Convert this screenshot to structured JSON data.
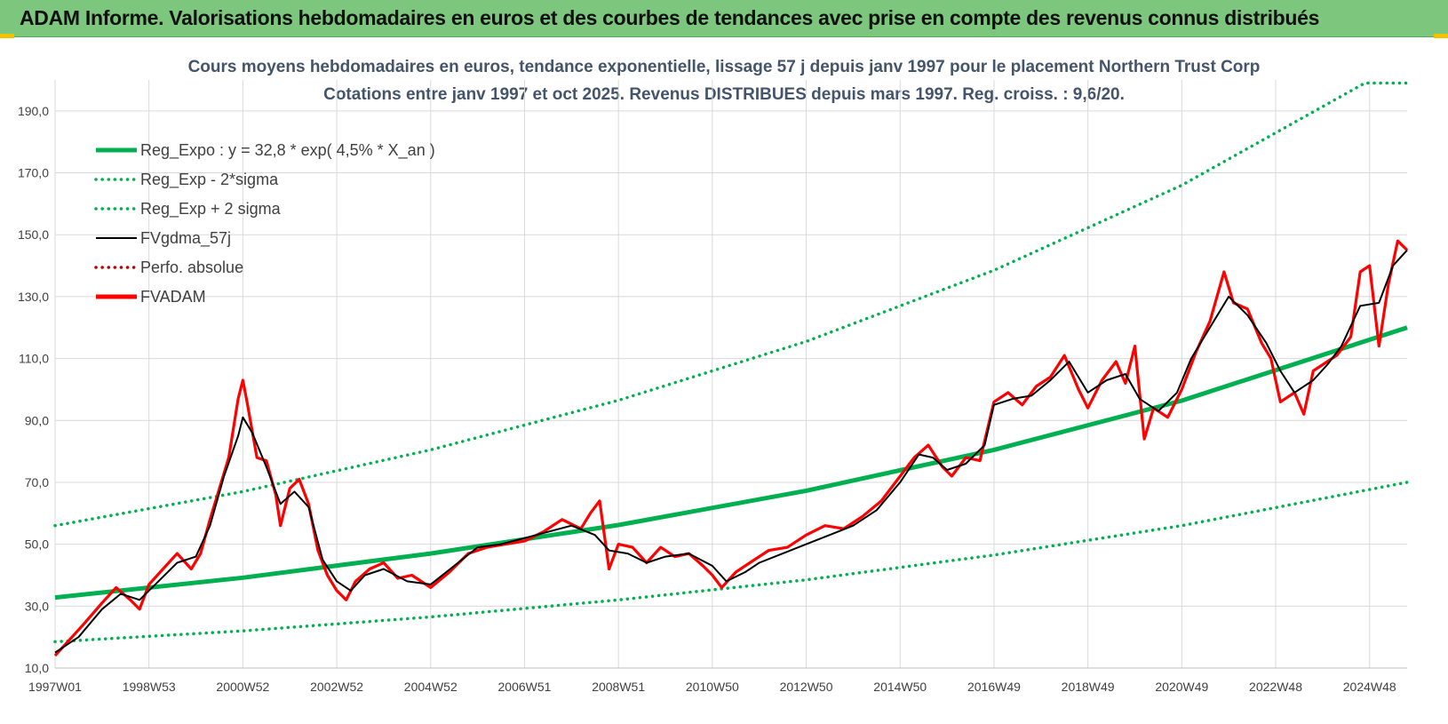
{
  "banner": {
    "title": "ADAM Informe. Valorisations hebdomadaires en euros et des courbes de tendances avec prise en compte des revenus connus distribués"
  },
  "colors": {
    "banner_bg": "#7dc67d",
    "green": "#00b050",
    "red": "#ff0000",
    "black": "#000000",
    "darkred": "#c00000",
    "title": "#44546a",
    "grid": "#d9d9d9"
  },
  "chart_data": {
    "type": "line",
    "title": "Cours moyens hebdomadaires en euros, tendance exponentielle, lissage 57 j depuis janv 1997 pour le placement Northern Trust Corp",
    "subtitle": "Cotations entre janv 1997 et oct 2025. Revenus DISTRIBUES depuis mars 1997.  Reg. croiss. : 9,6/20.",
    "xlabel": "",
    "ylabel": "",
    "ylim": [
      10,
      200
    ],
    "xlim": [
      1997.0,
      2025.8
    ],
    "yticks": [
      "10,0",
      "30,0",
      "50,0",
      "70,0",
      "90,0",
      "110,0",
      "130,0",
      "150,0",
      "170,0",
      "190,0"
    ],
    "ytick_values": [
      10,
      30,
      50,
      70,
      90,
      110,
      130,
      150,
      170,
      190
    ],
    "xticks": [
      "1997W01",
      "1998W53",
      "2000W52",
      "2002W52",
      "2004W52",
      "2006W51",
      "2008W51",
      "2010W50",
      "2012W50",
      "2014W50",
      "2016W49",
      "2018W49",
      "2020W49",
      "2022W48",
      "2024W48"
    ],
    "xtick_values": [
      1997.0,
      1999.0,
      2001.0,
      2003.0,
      2005.0,
      2007.0,
      2009.0,
      2011.0,
      2013.0,
      2015.0,
      2017.0,
      2019.0,
      2021.0,
      2023.0,
      2025.0
    ],
    "grid": true,
    "legend_position": "top-left",
    "series": [
      {
        "name": "Reg_Expo : y = 32,8 * exp( 4,5% *  X_an )",
        "style": "solid-thick",
        "color": "#00b050",
        "points": [
          [
            1997.0,
            32.8
          ],
          [
            2001.0,
            39.2
          ],
          [
            2005.0,
            47.0
          ],
          [
            2009.0,
            56.2
          ],
          [
            2013.0,
            67.3
          ],
          [
            2017.0,
            80.5
          ],
          [
            2021.0,
            96.4
          ],
          [
            2025.8,
            120.0
          ]
        ]
      },
      {
        "name": "Reg_Exp - 2*sigma",
        "style": "dotted",
        "color": "#00b050",
        "points": [
          [
            1997.0,
            18.5
          ],
          [
            2001.0,
            22.0
          ],
          [
            2005.0,
            26.5
          ],
          [
            2009.0,
            32.0
          ],
          [
            2013.0,
            38.5
          ],
          [
            2017.0,
            46.5
          ],
          [
            2021.0,
            56.0
          ],
          [
            2025.8,
            70.0
          ]
        ]
      },
      {
        "name": "Reg_Exp + 2 sigma",
        "style": "dotted",
        "color": "#00b050",
        "points": [
          [
            1997.0,
            56.0
          ],
          [
            2001.0,
            67.0
          ],
          [
            2005.0,
            80.5
          ],
          [
            2009.0,
            96.5
          ],
          [
            2013.0,
            115.5
          ],
          [
            2017.0,
            138.5
          ],
          [
            2021.0,
            166.0
          ],
          [
            2024.9,
            199.0
          ],
          [
            2025.8,
            199.0
          ]
        ]
      },
      {
        "name": "FVgdma_57j",
        "style": "solid",
        "color": "#000000",
        "points": [
          [
            1997.0,
            15
          ],
          [
            1997.5,
            20
          ],
          [
            1998.0,
            29
          ],
          [
            1998.4,
            34
          ],
          [
            1998.8,
            32
          ],
          [
            1999.2,
            38
          ],
          [
            1999.6,
            44
          ],
          [
            2000.0,
            46
          ],
          [
            2000.3,
            56
          ],
          [
            2000.6,
            72
          ],
          [
            2000.9,
            85
          ],
          [
            2001.0,
            91
          ],
          [
            2001.2,
            86
          ],
          [
            2001.5,
            75
          ],
          [
            2001.8,
            63
          ],
          [
            2002.1,
            67
          ],
          [
            2002.4,
            62
          ],
          [
            2002.7,
            45
          ],
          [
            2003.0,
            38
          ],
          [
            2003.3,
            35
          ],
          [
            2003.6,
            40
          ],
          [
            2004.0,
            42
          ],
          [
            2004.5,
            38
          ],
          [
            2005.0,
            37
          ],
          [
            2005.5,
            43
          ],
          [
            2006.0,
            49
          ],
          [
            2006.5,
            50
          ],
          [
            2007.0,
            52
          ],
          [
            2007.5,
            54
          ],
          [
            2008.0,
            56
          ],
          [
            2008.5,
            53
          ],
          [
            2008.8,
            48
          ],
          [
            2009.2,
            47
          ],
          [
            2009.6,
            44
          ],
          [
            2010.0,
            46
          ],
          [
            2010.5,
            47
          ],
          [
            2011.0,
            43
          ],
          [
            2011.3,
            38
          ],
          [
            2011.7,
            41
          ],
          [
            2012.0,
            44
          ],
          [
            2012.5,
            47
          ],
          [
            2013.0,
            50
          ],
          [
            2013.5,
            53
          ],
          [
            2014.0,
            56
          ],
          [
            2014.5,
            61
          ],
          [
            2015.0,
            70
          ],
          [
            2015.4,
            79
          ],
          [
            2015.7,
            78
          ],
          [
            2016.0,
            74
          ],
          [
            2016.4,
            76
          ],
          [
            2016.8,
            82
          ],
          [
            2017.0,
            95
          ],
          [
            2017.4,
            97
          ],
          [
            2017.8,
            98
          ],
          [
            2018.2,
            103
          ],
          [
            2018.6,
            109
          ],
          [
            2019.0,
            99
          ],
          [
            2019.4,
            103
          ],
          [
            2019.8,
            105
          ],
          [
            2020.1,
            97
          ],
          [
            2020.5,
            93
          ],
          [
            2020.9,
            99
          ],
          [
            2021.2,
            110
          ],
          [
            2021.6,
            120
          ],
          [
            2022.0,
            130
          ],
          [
            2022.4,
            124
          ],
          [
            2022.8,
            115
          ],
          [
            2023.1,
            106
          ],
          [
            2023.4,
            99
          ],
          [
            2023.8,
            103
          ],
          [
            2024.1,
            108
          ],
          [
            2024.4,
            114
          ],
          [
            2024.8,
            127
          ],
          [
            2025.2,
            128
          ],
          [
            2025.5,
            140
          ],
          [
            2025.8,
            145
          ]
        ]
      },
      {
        "name": "Perfo. absolue",
        "style": "dotted",
        "color": "#c00000",
        "points": []
      },
      {
        "name": "FVADAM",
        "style": "solid-thick",
        "color": "#ff0000",
        "points": [
          [
            1997.0,
            14
          ],
          [
            1997.3,
            19
          ],
          [
            1997.6,
            24
          ],
          [
            1998.0,
            31
          ],
          [
            1998.3,
            36
          ],
          [
            1998.6,
            32
          ],
          [
            1998.8,
            29
          ],
          [
            1999.0,
            37
          ],
          [
            1999.3,
            42
          ],
          [
            1999.6,
            47
          ],
          [
            1999.9,
            42
          ],
          [
            2000.1,
            47
          ],
          [
            2000.3,
            58
          ],
          [
            2000.5,
            68
          ],
          [
            2000.7,
            78
          ],
          [
            2000.9,
            97
          ],
          [
            2001.0,
            103
          ],
          [
            2001.1,
            95
          ],
          [
            2001.3,
            78
          ],
          [
            2001.5,
            77
          ],
          [
            2001.7,
            66
          ],
          [
            2001.8,
            56
          ],
          [
            2002.0,
            68
          ],
          [
            2002.2,
            71
          ],
          [
            2002.4,
            63
          ],
          [
            2002.6,
            48
          ],
          [
            2002.8,
            40
          ],
          [
            2003.0,
            35
          ],
          [
            2003.2,
            32
          ],
          [
            2003.4,
            38
          ],
          [
            2003.7,
            42
          ],
          [
            2004.0,
            44
          ],
          [
            2004.3,
            39
          ],
          [
            2004.6,
            40
          ],
          [
            2005.0,
            36
          ],
          [
            2005.4,
            41
          ],
          [
            2005.8,
            47
          ],
          [
            2006.2,
            49
          ],
          [
            2006.6,
            50
          ],
          [
            2007.0,
            51
          ],
          [
            2007.4,
            54
          ],
          [
            2007.8,
            58
          ],
          [
            2008.2,
            55
          ],
          [
            2008.4,
            60
          ],
          [
            2008.6,
            64
          ],
          [
            2008.8,
            42
          ],
          [
            2009.0,
            50
          ],
          [
            2009.3,
            49
          ],
          [
            2009.6,
            44
          ],
          [
            2009.9,
            49
          ],
          [
            2010.2,
            46
          ],
          [
            2010.5,
            47
          ],
          [
            2010.8,
            43
          ],
          [
            2011.0,
            40
          ],
          [
            2011.2,
            36
          ],
          [
            2011.5,
            41
          ],
          [
            2011.8,
            44
          ],
          [
            2012.2,
            48
          ],
          [
            2012.6,
            49
          ],
          [
            2013.0,
            53
          ],
          [
            2013.4,
            56
          ],
          [
            2013.8,
            55
          ],
          [
            2014.2,
            59
          ],
          [
            2014.6,
            64
          ],
          [
            2015.0,
            72
          ],
          [
            2015.3,
            78
          ],
          [
            2015.6,
            82
          ],
          [
            2015.9,
            75
          ],
          [
            2016.1,
            72
          ],
          [
            2016.4,
            78
          ],
          [
            2016.7,
            77
          ],
          [
            2017.0,
            96
          ],
          [
            2017.3,
            99
          ],
          [
            2017.6,
            95
          ],
          [
            2017.9,
            101
          ],
          [
            2018.2,
            104
          ],
          [
            2018.5,
            111
          ],
          [
            2018.8,
            100
          ],
          [
            2019.0,
            94
          ],
          [
            2019.3,
            103
          ],
          [
            2019.6,
            109
          ],
          [
            2019.8,
            102
          ],
          [
            2020.0,
            114
          ],
          [
            2020.2,
            84
          ],
          [
            2020.4,
            94
          ],
          [
            2020.7,
            91
          ],
          [
            2021.0,
            100
          ],
          [
            2021.3,
            112
          ],
          [
            2021.6,
            122
          ],
          [
            2021.9,
            138
          ],
          [
            2022.1,
            128
          ],
          [
            2022.4,
            126
          ],
          [
            2022.7,
            115
          ],
          [
            2022.9,
            110
          ],
          [
            2023.1,
            96
          ],
          [
            2023.4,
            99
          ],
          [
            2023.6,
            92
          ],
          [
            2023.8,
            106
          ],
          [
            2024.0,
            108
          ],
          [
            2024.3,
            111
          ],
          [
            2024.6,
            117
          ],
          [
            2024.8,
            138
          ],
          [
            2025.0,
            140
          ],
          [
            2025.2,
            114
          ],
          [
            2025.4,
            134
          ],
          [
            2025.6,
            148
          ],
          [
            2025.8,
            145
          ]
        ]
      }
    ]
  }
}
